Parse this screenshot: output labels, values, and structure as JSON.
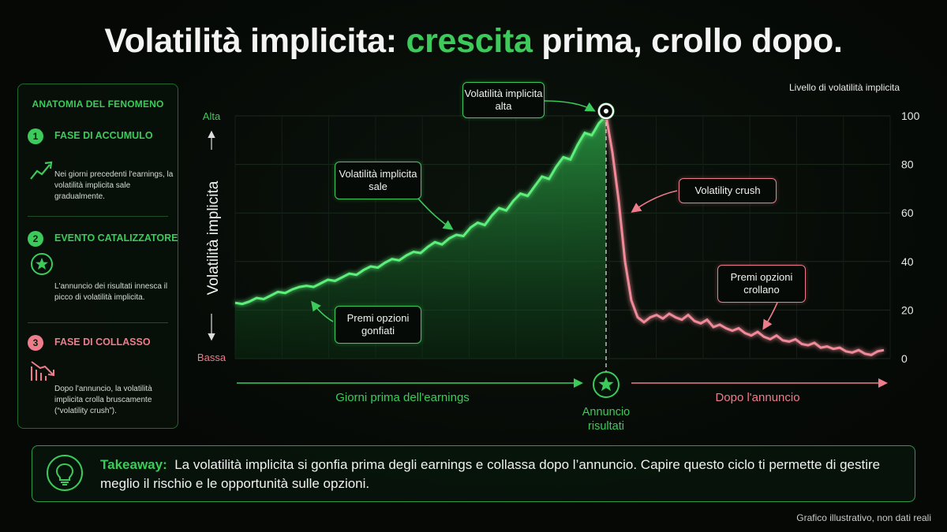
{
  "title": {
    "part1": "Volatilità implicita: ",
    "highlight": "crescita",
    "part2": " prima, crollo dopo."
  },
  "panel": {
    "heading": "ANATOMIA DEL FENOMENO",
    "phases": [
      {
        "num": "1",
        "title": "FASE DI ACCUMULO",
        "desc": "Nei giorni precedenti l'earnings, la volatilità implicita sale gradualmente."
      },
      {
        "num": "2",
        "title": "EVENTO CATALIZZATORE",
        "desc": "L'annuncio dei risultati innesca il picco di volatilità implicita."
      },
      {
        "num": "3",
        "title": "FASE DI COLLASSO",
        "desc": "Dopo l'annuncio, la volatilità implicita crolla bruscamente (“volatility crush”)."
      }
    ]
  },
  "chart_data": {
    "type": "line",
    "ylabel": "Volatilità implicita",
    "right_axis_title": "Livello di volatilità implicita",
    "yticks": [
      0,
      20,
      40,
      60,
      80,
      100
    ],
    "ylim": [
      0,
      100
    ],
    "y_high_label": "Alta",
    "y_low_label": "Bassa",
    "series_before": [
      23,
      22.5,
      23.5,
      25,
      24.5,
      26,
      27.5,
      27,
      28.5,
      29.5,
      30,
      29.5,
      31,
      32.5,
      32,
      33.5,
      35,
      34.5,
      36.5,
      38,
      37.5,
      39.5,
      41,
      40.5,
      42.5,
      44,
      43.5,
      46,
      48,
      47,
      49.5,
      51,
      50.5,
      54,
      56,
      55,
      59,
      62,
      61,
      65,
      68,
      67,
      71,
      75,
      74,
      79,
      83,
      82,
      88,
      93,
      92,
      97,
      100
    ],
    "series_after": [
      100,
      85,
      65,
      40,
      24,
      17,
      15,
      17,
      18,
      16.5,
      18.5,
      17,
      16,
      18,
      15.5,
      14.5,
      16,
      13,
      14,
      12.5,
      11.5,
      12.5,
      10.5,
      9.5,
      11,
      9,
      8,
      9.5,
      7.5,
      7,
      8,
      6,
      5.5,
      6.5,
      4.5,
      5,
      4,
      4.5,
      3,
      2.5,
      3.5,
      2,
      1.5,
      3,
      3.5
    ],
    "peak_value": 100,
    "event_label": "Annuncio risultati",
    "before_label": "Giorni prima dell'earnings",
    "after_label": "Dopo l'annuncio",
    "annotations": {
      "high": "Volatilità implicita alta",
      "rising": "Volatilità implicita sale",
      "premiums_inflated": "Premi opzioni gonfiati",
      "crush": "Volatility crush",
      "premiums_crash": "Premi opzioni crollano"
    }
  },
  "colors": {
    "accent_green": "#3ccb5a",
    "accent_red": "#ee7c8b",
    "background": "#050805"
  },
  "takeaway": {
    "label": "Takeaway:",
    "text": "La volatilità implicita si gonfia prima degli earnings e collassa dopo l’annuncio. Capire questo ciclo ti permette di gestire meglio il rischio e le opportunità sulle opzioni.",
    "icon": "lightbulb-icon"
  },
  "footnote": "Grafico illustrativo, non dati reali"
}
